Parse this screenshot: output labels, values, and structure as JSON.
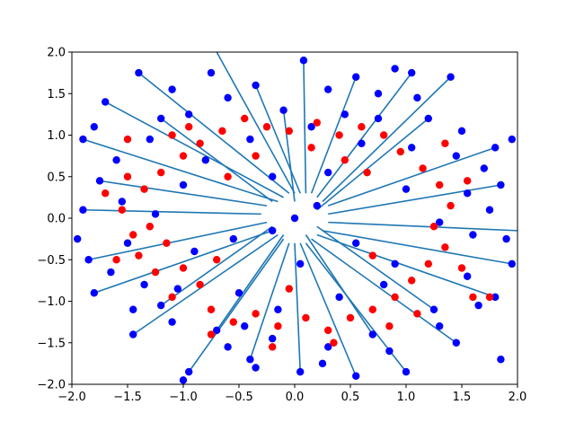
{
  "chart_data": {
    "type": "scatter",
    "title": "",
    "xlabel": "",
    "ylabel": "",
    "xlim": [
      -2.0,
      2.0
    ],
    "ylim": [
      -2.0,
      2.0
    ],
    "grid": false,
    "legend": "none",
    "x_ticks": [
      "−2.0",
      "−1.5",
      "−1.0",
      "−0.5",
      "0.0",
      "0.5",
      "1.0",
      "1.5",
      "2.0"
    ],
    "y_ticks": [
      "−2.0",
      "−1.5",
      "−1.0",
      "−0.5",
      "0.0",
      "0.5",
      "1.0",
      "1.5",
      "2.0"
    ],
    "colors": {
      "blue": "#0000ff",
      "red": "#ff0000",
      "line": "#1f77b4"
    },
    "segments": [
      {
        "from": [
          -0.15,
          0.2
        ],
        "to": [
          -1.9,
          0.95
        ]
      },
      {
        "from": [
          -0.1,
          0.25
        ],
        "to": [
          -1.7,
          1.4
        ]
      },
      {
        "from": [
          -0.05,
          0.3
        ],
        "to": [
          -1.4,
          1.75
        ]
      },
      {
        "from": [
          0.0,
          0.3
        ],
        "to": [
          -0.7,
          2.0
        ]
      },
      {
        "from": [
          0.05,
          0.3
        ],
        "to": [
          -0.35,
          1.6
        ]
      },
      {
        "from": [
          0.1,
          0.3
        ],
        "to": [
          0.08,
          1.9
        ]
      },
      {
        "from": [
          0.15,
          0.3
        ],
        "to": [
          0.55,
          1.7
        ]
      },
      {
        "from": [
          0.2,
          0.25
        ],
        "to": [
          1.05,
          1.75
        ]
      },
      {
        "from": [
          0.25,
          0.2
        ],
        "to": [
          1.4,
          1.7
        ]
      },
      {
        "from": [
          0.3,
          0.15
        ],
        "to": [
          1.8,
          0.85
        ]
      },
      {
        "from": [
          0.3,
          0.05
        ],
        "to": [
          1.85,
          0.4
        ]
      },
      {
        "from": [
          0.3,
          -0.05
        ],
        "to": [
          2.0,
          -0.15
        ]
      },
      {
        "from": [
          0.25,
          -0.15
        ],
        "to": [
          1.95,
          -0.55
        ]
      },
      {
        "from": [
          0.2,
          -0.2
        ],
        "to": [
          1.8,
          -0.95
        ]
      },
      {
        "from": [
          0.15,
          -0.25
        ],
        "to": [
          1.45,
          -1.5
        ]
      },
      {
        "from": [
          0.1,
          -0.3
        ],
        "to": [
          1.0,
          -1.85
        ]
      },
      {
        "from": [
          0.05,
          -0.3
        ],
        "to": [
          0.55,
          -1.9
        ]
      },
      {
        "from": [
          0.0,
          -0.3
        ],
        "to": [
          0.05,
          -1.85
        ]
      },
      {
        "from": [
          -0.05,
          -0.3
        ],
        "to": [
          -0.4,
          -1.7
        ]
      },
      {
        "from": [
          -0.1,
          -0.25
        ],
        "to": [
          -0.95,
          -1.85
        ]
      },
      {
        "from": [
          -0.15,
          -0.2
        ],
        "to": [
          -1.45,
          -1.4
        ]
      },
      {
        "from": [
          -0.2,
          -0.15
        ],
        "to": [
          -1.8,
          -0.9
        ]
      },
      {
        "from": [
          -0.25,
          -0.05
        ],
        "to": [
          -1.85,
          -0.5
        ]
      },
      {
        "from": [
          -0.3,
          0.05
        ],
        "to": [
          -1.9,
          0.1
        ]
      },
      {
        "from": [
          -0.25,
          0.15
        ],
        "to": [
          -1.75,
          0.45
        ]
      },
      {
        "from": [
          -0.2,
          0.2
        ],
        "to": [
          -1.2,
          1.2
        ]
      },
      {
        "from": [
          0.2,
          0.1
        ],
        "to": [
          1.2,
          1.2
        ]
      },
      {
        "from": [
          0.2,
          -0.1
        ],
        "to": [
          1.25,
          -1.1
        ]
      },
      {
        "from": [
          -0.2,
          -0.1
        ],
        "to": [
          -1.2,
          -1.05
        ]
      },
      {
        "from": [
          0.0,
          0.2
        ],
        "to": [
          -0.1,
          1.3
        ]
      },
      {
        "from": [
          0.1,
          -0.2
        ],
        "to": [
          0.7,
          -1.4
        ]
      },
      {
        "from": [
          -0.1,
          -0.2
        ],
        "to": [
          -0.7,
          -1.35
        ]
      }
    ],
    "series": [
      {
        "color": "blue",
        "points": [
          [
            -1.9,
            0.95
          ],
          [
            -1.7,
            1.4
          ],
          [
            -1.4,
            1.75
          ],
          [
            -1.1,
            1.55
          ],
          [
            -0.35,
            1.6
          ],
          [
            0.08,
            1.9
          ],
          [
            0.55,
            1.7
          ],
          [
            1.05,
            1.75
          ],
          [
            1.4,
            1.7
          ],
          [
            1.8,
            0.85
          ],
          [
            1.85,
            0.4
          ],
          [
            1.95,
            -0.55
          ],
          [
            1.8,
            -0.95
          ],
          [
            1.45,
            -1.5
          ],
          [
            1.0,
            -1.85
          ],
          [
            0.55,
            -1.9
          ],
          [
            0.05,
            -1.85
          ],
          [
            -0.4,
            -1.7
          ],
          [
            -0.95,
            -1.85
          ],
          [
            -1.45,
            -1.4
          ],
          [
            -1.8,
            -0.9
          ],
          [
            -1.85,
            -0.5
          ],
          [
            -1.9,
            0.1
          ],
          [
            -1.75,
            0.45
          ],
          [
            -1.2,
            1.2
          ],
          [
            1.2,
            1.2
          ],
          [
            1.25,
            -1.1
          ],
          [
            -1.2,
            -1.05
          ],
          [
            -0.1,
            1.3
          ],
          [
            0.7,
            -1.4
          ],
          [
            -0.7,
            -1.35
          ],
          [
            -1.6,
            0.7
          ],
          [
            -1.55,
            0.2
          ],
          [
            -1.5,
            -0.3
          ],
          [
            -1.35,
            -0.8
          ],
          [
            -1.1,
            -1.25
          ],
          [
            -0.6,
            -1.55
          ],
          [
            -0.2,
            -1.45
          ],
          [
            0.3,
            -1.55
          ],
          [
            0.85,
            -1.6
          ],
          [
            1.3,
            -1.3
          ],
          [
            1.55,
            -0.7
          ],
          [
            1.6,
            -0.2
          ],
          [
            1.55,
            0.3
          ],
          [
            1.45,
            0.75
          ],
          [
            1.1,
            1.45
          ],
          [
            0.75,
            1.5
          ],
          [
            0.3,
            1.55
          ],
          [
            -0.6,
            1.45
          ],
          [
            -0.95,
            1.25
          ],
          [
            -1.3,
            0.95
          ],
          [
            -1.0,
            0.4
          ],
          [
            -0.9,
            -0.4
          ],
          [
            -0.5,
            -0.9
          ],
          [
            0.4,
            -0.95
          ],
          [
            0.9,
            -0.55
          ],
          [
            1.0,
            0.35
          ],
          [
            0.6,
            0.9
          ],
          [
            -0.4,
            0.95
          ],
          [
            -0.2,
            0.5
          ],
          [
            0.3,
            0.55
          ],
          [
            0.55,
            -0.3
          ],
          [
            -0.55,
            -0.25
          ],
          [
            0.05,
            -0.55
          ],
          [
            1.75,
            0.1
          ],
          [
            1.9,
            -0.25
          ],
          [
            -1.95,
            -0.25
          ],
          [
            0.9,
            1.8
          ],
          [
            -0.75,
            1.75
          ],
          [
            1.5,
            1.05
          ],
          [
            -1.45,
            -1.1
          ],
          [
            1.65,
            -1.05
          ],
          [
            -0.35,
            -1.8
          ],
          [
            0.25,
            -1.75
          ],
          [
            -1.25,
            0.05
          ],
          [
            1.3,
            -0.05
          ],
          [
            0.15,
            1.1
          ],
          [
            -0.15,
            -1.1
          ],
          [
            -0.8,
            0.7
          ],
          [
            0.8,
            -0.8
          ],
          [
            -1.65,
            -0.65
          ],
          [
            1.7,
            0.6
          ],
          [
            0.45,
            1.25
          ],
          [
            -0.45,
            -1.3
          ],
          [
            -1.05,
            -0.85
          ],
          [
            1.05,
            0.85
          ],
          [
            0.0,
            0.0
          ],
          [
            0.2,
            0.15
          ],
          [
            -0.2,
            -0.15
          ],
          [
            1.95,
            0.95
          ],
          [
            -1.8,
            1.1
          ],
          [
            1.85,
            -1.7
          ],
          [
            -1.0,
            -1.95
          ],
          [
            0.75,
            1.2
          ]
        ]
      },
      {
        "color": "red",
        "points": [
          [
            -1.5,
            0.5
          ],
          [
            -1.35,
            0.35
          ],
          [
            -1.2,
            0.55
          ],
          [
            -1.3,
            -0.1
          ],
          [
            -1.15,
            -0.3
          ],
          [
            -1.4,
            -0.45
          ],
          [
            -1.25,
            -0.65
          ],
          [
            -1.0,
            -0.6
          ],
          [
            -0.85,
            -0.8
          ],
          [
            -0.75,
            -1.1
          ],
          [
            -0.55,
            -1.25
          ],
          [
            -0.35,
            -1.15
          ],
          [
            -0.15,
            -1.3
          ],
          [
            0.1,
            -1.2
          ],
          [
            0.3,
            -1.35
          ],
          [
            0.5,
            -1.2
          ],
          [
            0.7,
            -1.1
          ],
          [
            0.9,
            -0.95
          ],
          [
            1.05,
            -0.75
          ],
          [
            1.2,
            -0.55
          ],
          [
            1.35,
            -0.35
          ],
          [
            1.25,
            -0.1
          ],
          [
            1.4,
            0.15
          ],
          [
            1.3,
            0.4
          ],
          [
            1.15,
            0.6
          ],
          [
            0.95,
            0.8
          ],
          [
            0.8,
            1.0
          ],
          [
            0.6,
            1.1
          ],
          [
            0.4,
            1.0
          ],
          [
            0.2,
            1.15
          ],
          [
            -0.05,
            1.05
          ],
          [
            -0.25,
            1.1
          ],
          [
            -0.45,
            1.2
          ],
          [
            -0.65,
            1.05
          ],
          [
            -0.85,
            0.9
          ],
          [
            -1.0,
            0.75
          ],
          [
            -1.1,
            1.0
          ],
          [
            -0.95,
            1.1
          ],
          [
            -1.55,
            0.1
          ],
          [
            -1.45,
            -0.2
          ],
          [
            -1.6,
            -0.5
          ],
          [
            1.5,
            -0.6
          ],
          [
            1.55,
            0.45
          ],
          [
            1.6,
            -0.95
          ],
          [
            -1.5,
            0.95
          ],
          [
            0.85,
            -1.3
          ],
          [
            -0.75,
            -1.4
          ],
          [
            0.35,
            -1.5
          ],
          [
            -0.2,
            -1.55
          ],
          [
            1.1,
            -1.15
          ],
          [
            -1.1,
            -0.95
          ],
          [
            1.35,
            0.9
          ],
          [
            -0.35,
            0.75
          ],
          [
            0.45,
            0.7
          ],
          [
            0.65,
            0.55
          ],
          [
            -0.6,
            0.5
          ],
          [
            -0.7,
            -0.5
          ],
          [
            0.7,
            -0.45
          ],
          [
            0.15,
            0.85
          ],
          [
            -0.05,
            -0.85
          ],
          [
            1.75,
            -0.95
          ],
          [
            -1.7,
            0.3
          ]
        ]
      }
    ]
  }
}
